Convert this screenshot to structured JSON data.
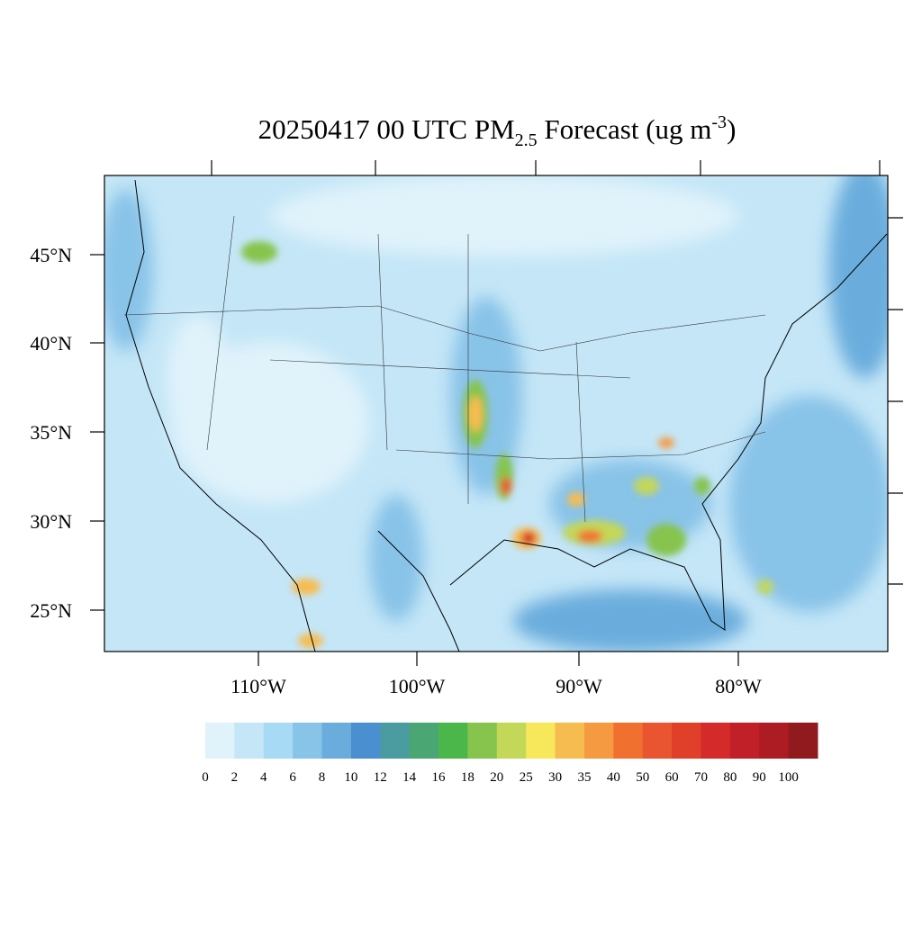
{
  "title": {
    "main": "20250417 00 UTC PM",
    "sub": "2.5",
    "mid": " Forecast (ug m",
    "sup": "-3",
    "end": ")"
  },
  "lon_labels": [
    "110°W",
    "100°W",
    "90°W",
    "80°W"
  ],
  "lat_labels": [
    "45°N",
    "40°N",
    "35°N",
    "30°N",
    "25°N"
  ],
  "colorbar": {
    "levels": [
      0,
      2,
      4,
      6,
      8,
      10,
      12,
      14,
      16,
      18,
      20,
      25,
      30,
      35,
      40,
      50,
      60,
      70,
      80,
      90,
      100
    ],
    "colors": [
      "#e0f3fb",
      "#c4e6f7",
      "#a6daf5",
      "#88c3e8",
      "#6aaddd",
      "#4a8fcf",
      "#4a9ca0",
      "#4aa672",
      "#4bb74a",
      "#86c44d",
      "#c3d759",
      "#f7e75a",
      "#f7bc4f",
      "#f59a40",
      "#f07030",
      "#e85530",
      "#e0402a",
      "#d42a2a",
      "#c22028",
      "#ac1c22",
      "#901a1e"
    ]
  }
}
